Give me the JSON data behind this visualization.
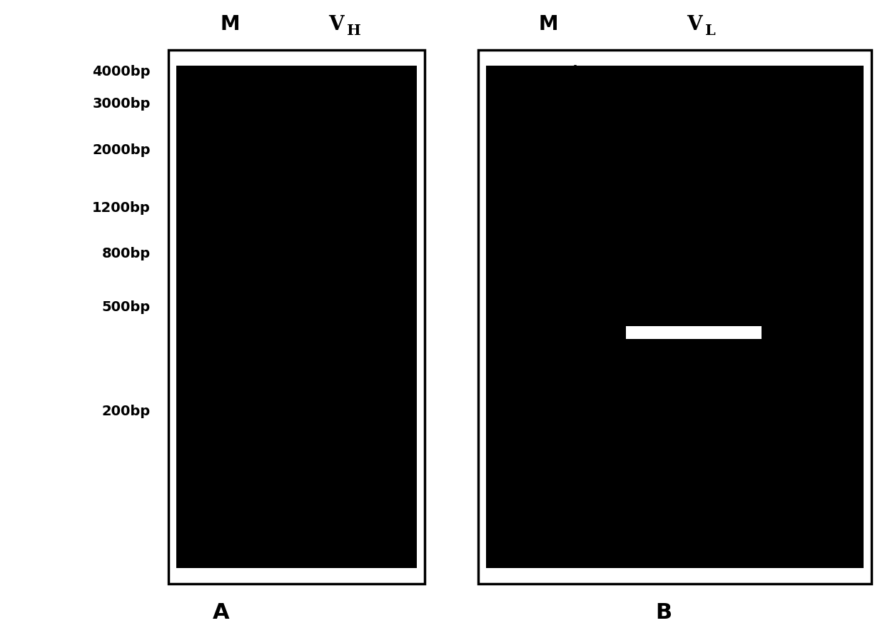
{
  "background_color": "#ffffff",
  "panel_A": {
    "label": "A",
    "col_label_M": "M",
    "col_label_V": "V",
    "col_label_V_sub": "H",
    "bp_labels": [
      "4000bp",
      "3000bp",
      "2000bp",
      "1200bp",
      "800bp",
      "500bp",
      "200bp"
    ],
    "bp_values": [
      4000,
      3000,
      2000,
      1200,
      800,
      500,
      200
    ],
    "has_band": false
  },
  "panel_B": {
    "label": "B",
    "col_label_M": "M",
    "col_label_V": "V",
    "col_label_V_sub": "L",
    "bp_labels": [
      "4000bp",
      "3000bp",
      "2000bp",
      "1200bp",
      "800bp",
      "500bp",
      "200bp"
    ],
    "bp_values": [
      4000,
      3000,
      2000,
      1200,
      800,
      500,
      200
    ],
    "has_band": true,
    "band_bp": 400
  },
  "label_fontsize": 14,
  "header_fontsize": 20,
  "panel_label_fontsize": 22
}
